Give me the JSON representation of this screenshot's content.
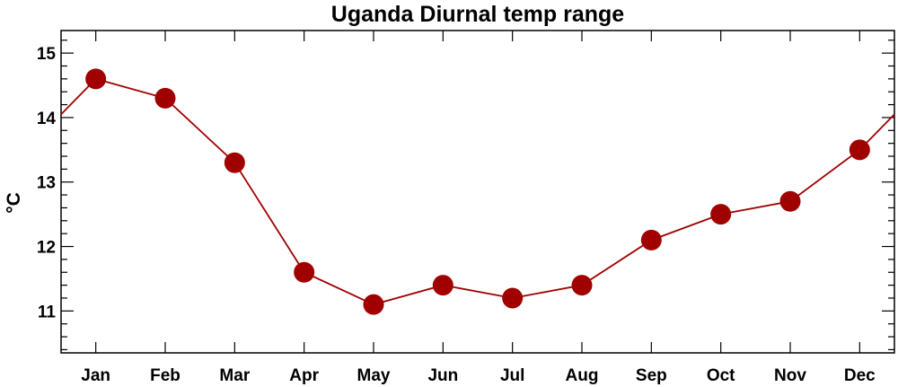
{
  "chart_data": {
    "type": "line",
    "title": "Uganda Diurnal temp range",
    "xlabel": "",
    "ylabel": "°C",
    "categories": [
      "Jan",
      "Feb",
      "Mar",
      "Apr",
      "May",
      "Jun",
      "Jul",
      "Aug",
      "Sep",
      "Oct",
      "Nov",
      "Dec"
    ],
    "series": [
      {
        "values": [
          14.6,
          14.3,
          13.3,
          11.6,
          11.1,
          11.4,
          11.2,
          11.4,
          12.1,
          12.5,
          12.7,
          13.5
        ]
      }
    ],
    "ylim": [
      10.35,
      15.35
    ],
    "yticks": [
      11,
      12,
      13,
      14,
      15
    ],
    "ytick_labels": [
      "11",
      "12",
      "13",
      "14",
      "15"
    ],
    "y_minor_step": 0.2,
    "line_wraps_around": true,
    "grid": false,
    "legend": "none",
    "colors": {
      "line": "#a00000",
      "marker": "#a00000",
      "axes": "#000000"
    }
  }
}
